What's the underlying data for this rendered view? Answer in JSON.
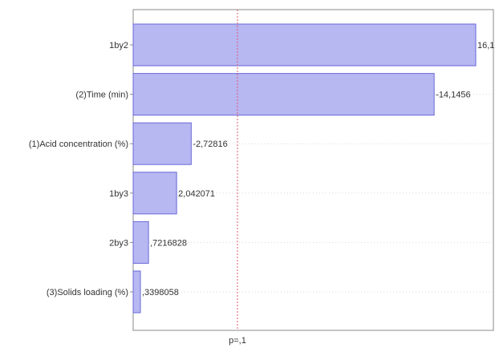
{
  "chart_data": {
    "type": "bar",
    "orientation": "horizontal",
    "title": "",
    "xlabel": "",
    "ylabel": "",
    "categories": [
      "1by2",
      "(2)Time (min)",
      "(1)Acid concentration (%)",
      "1by3",
      "2by3",
      "(3)Solids loading (%)"
    ],
    "values": [
      16.1,
      14.1456,
      2.72816,
      2.042071,
      0.7216828,
      0.3398058
    ],
    "value_labels": [
      "16,1",
      "-14,1456",
      "-2,72816",
      "2,042071",
      ",7216828",
      ",3398058"
    ],
    "xlim": [
      0,
      16.1
    ],
    "reference_line": {
      "value": 4.9,
      "label": "p=,1",
      "color": "#e05a6a"
    },
    "bar_color": "#b7b7f2",
    "bar_edge_color": "#6a6ad8",
    "grid": true
  }
}
